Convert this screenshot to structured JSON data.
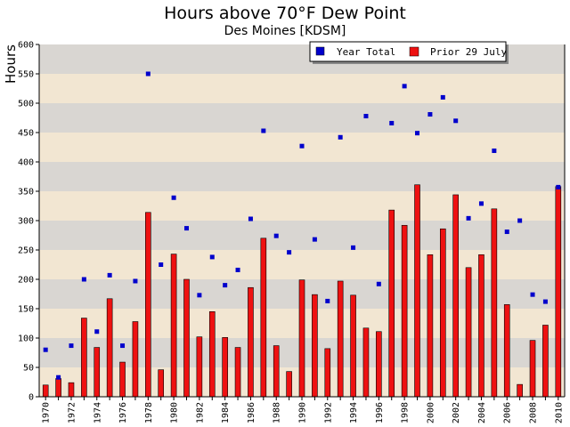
{
  "chart_data": {
    "type": "bar",
    "title": "Hours above 70°F Dew Point",
    "subtitle": "Des Moines [KDSM]",
    "xlabel": "",
    "ylabel": "Hours",
    "ylim": [
      0,
      600
    ],
    "yticks": [
      0,
      50,
      100,
      150,
      200,
      250,
      300,
      350,
      400,
      450,
      500,
      550,
      600
    ],
    "x": [
      1970,
      1971,
      1972,
      1973,
      1974,
      1975,
      1976,
      1977,
      1978,
      1979,
      1980,
      1981,
      1982,
      1983,
      1984,
      1985,
      1986,
      1987,
      1988,
      1989,
      1990,
      1991,
      1992,
      1993,
      1994,
      1995,
      1996,
      1997,
      1998,
      1999,
      2000,
      2001,
      2002,
      2003,
      2004,
      2005,
      2006,
      2007,
      2008,
      2009,
      2010
    ],
    "xtick_labels": [
      1970,
      1972,
      1974,
      1976,
      1978,
      1980,
      1982,
      1984,
      1986,
      1988,
      1990,
      1992,
      1994,
      1996,
      1998,
      2000,
      2002,
      2004,
      2006,
      2008,
      2010
    ],
    "legend_position": "top-right",
    "grid": "horizontal bands",
    "series": [
      {
        "name": "Year Total",
        "style": "marker",
        "color": "#0000cc",
        "values": [
          80,
          33,
          87,
          200,
          111,
          207,
          87,
          197,
          550,
          225,
          339,
          287,
          173,
          238,
          190,
          216,
          303,
          453,
          274,
          246,
          427,
          268,
          163,
          442,
          254,
          478,
          192,
          466,
          529,
          449,
          481,
          510,
          470,
          304,
          329,
          419,
          281,
          300,
          174,
          162,
          357
        ]
      },
      {
        "name": "Prior 29 July",
        "style": "bar",
        "color": "#ee1111",
        "values": [
          20,
          31,
          24,
          134,
          84,
          167,
          59,
          128,
          314,
          46,
          243,
          200,
          102,
          145,
          101,
          84,
          186,
          270,
          87,
          43,
          199,
          174,
          82,
          197,
          173,
          117,
          111,
          318,
          292,
          361,
          242,
          286,
          344,
          220,
          242,
          320,
          157,
          21,
          96,
          122,
          358
        ]
      }
    ]
  }
}
